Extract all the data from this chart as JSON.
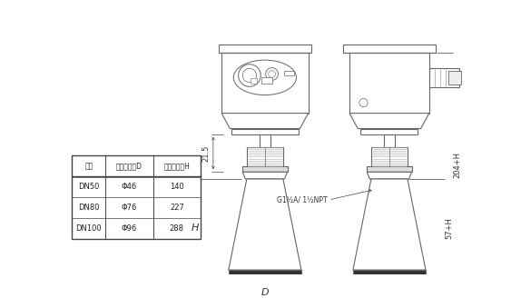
{
  "bg_color": "#ffffff",
  "line_color": "#666666",
  "table_headers": [
    "法兰",
    "喇叭口直径D",
    "喇叭口高度H"
  ],
  "table_rows": [
    [
      "DN50",
      "Φ46",
      "140"
    ],
    [
      "DN80",
      "Φ76",
      "227"
    ],
    [
      "DN100",
      "Φ96",
      "288"
    ]
  ],
  "dim_21_5": "21.5",
  "dim_H": "H",
  "dim_D": "D",
  "dim_204H": "204+H",
  "dim_57H": "57+H",
  "dim_thread": "G1½A/ 1½NPT",
  "font_size_dim": 6.0,
  "font_size_table": 6.0
}
